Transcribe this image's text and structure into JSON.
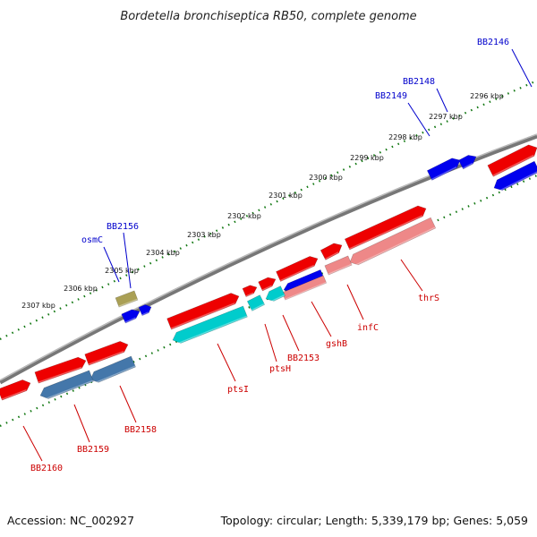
{
  "title": "Bordetella bronchiseptica RB50, complete genome",
  "footer": {
    "accession": "Accession: NC_002927",
    "topology": "Topology: circular; Length: 5,339,179 bp; Genes: 5,059"
  },
  "kbp_labels": [
    "2296 kbp",
    "2297 kbp",
    "2298 kbp",
    "2299 kbp",
    "2300 kbp",
    "2301 kbp",
    "2302 kbp",
    "2303 kbp",
    "2304 kbp",
    "2305 kbp",
    "2306 kbp",
    "2307 kbp"
  ],
  "forward_labels": [
    "BB2146",
    "BB2148",
    "BB2149",
    "BB2156",
    "osmC"
  ],
  "reverse_labels": [
    "thrS",
    "infC",
    "gshB",
    "BB2153",
    "ptsH",
    "ptsI",
    "BB2158",
    "BB2159",
    "BB2160"
  ],
  "colors": {
    "forward_label": "#0000cc",
    "reverse_label": "#cc0000",
    "gene_red": "#ee0000",
    "gene_blue": "#0000ee",
    "gene_cyan": "#00cccc",
    "gene_pink": "#ee8888",
    "gene_steel": "#4477aa",
    "gene_olive": "#aaa055",
    "backbone": "#888888",
    "scale_dots": "#117711"
  }
}
